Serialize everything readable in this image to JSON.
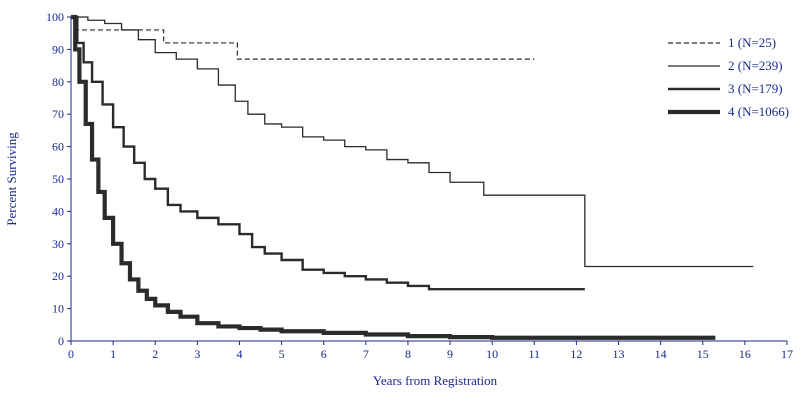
{
  "chart_data": {
    "type": "line",
    "title": "",
    "xlabel": "Years from Registration",
    "ylabel": "Percent Surviving",
    "xlim": [
      0,
      17
    ],
    "ylim": [
      0,
      100
    ],
    "x_ticks": [
      0,
      1,
      2,
      3,
      4,
      5,
      6,
      7,
      8,
      9,
      10,
      11,
      12,
      13,
      14,
      15,
      16,
      17
    ],
    "y_ticks": [
      0,
      10,
      20,
      30,
      40,
      50,
      60,
      70,
      80,
      90,
      100
    ],
    "grid": false,
    "legend_position": "top-right",
    "step": true,
    "series": [
      {
        "name": "1 (N=25)",
        "style": "dashed",
        "x": [
          0,
          0.15,
          2.2,
          3.95,
          11.0
        ],
        "y": [
          100,
          96,
          92,
          87,
          87
        ]
      },
      {
        "name": "2 (N=239)",
        "style": "thin",
        "x": [
          0,
          0.4,
          0.8,
          1.2,
          1.6,
          2.0,
          2.5,
          3.0,
          3.5,
          3.9,
          4.2,
          4.6,
          5.0,
          5.5,
          6.0,
          6.5,
          7.0,
          7.5,
          8.0,
          8.5,
          9.0,
          9.4,
          9.8,
          10.5,
          11.5,
          12.2,
          16.2
        ],
        "y": [
          100,
          99,
          98,
          96,
          93,
          89,
          87,
          84,
          79,
          74,
          70,
          67,
          66,
          63,
          62,
          60,
          59,
          56,
          55,
          52,
          49,
          49,
          45,
          45,
          45,
          23,
          23
        ]
      },
      {
        "name": "3 (N=179)",
        "style": "medium",
        "x": [
          0,
          0.15,
          0.3,
          0.5,
          0.75,
          1.0,
          1.25,
          1.5,
          1.75,
          2.0,
          2.3,
          2.6,
          3.0,
          3.5,
          4.0,
          4.3,
          4.6,
          5.0,
          5.5,
          6.0,
          6.5,
          7.0,
          7.5,
          8.0,
          8.5,
          9.0,
          10.0,
          11.0,
          12.2
        ],
        "y": [
          100,
          92,
          86,
          80,
          73,
          66,
          60,
          55,
          50,
          47,
          42,
          40,
          38,
          36,
          33,
          29,
          27,
          25,
          22,
          21,
          20,
          19,
          18,
          17,
          16,
          16,
          16,
          16,
          16
        ]
      },
      {
        "name": "4 (N=1066)",
        "style": "thick",
        "x": [
          0,
          0.1,
          0.2,
          0.35,
          0.5,
          0.65,
          0.8,
          1.0,
          1.2,
          1.4,
          1.6,
          1.8,
          2.0,
          2.3,
          2.6,
          3.0,
          3.5,
          4.0,
          4.5,
          5.0,
          6.0,
          7.0,
          8.0,
          9.0,
          10.0,
          11.0,
          12.0,
          13.0,
          14.0,
          15.3
        ],
        "y": [
          100,
          90,
          80,
          67,
          56,
          46,
          38,
          30,
          24,
          19,
          15.5,
          13,
          11,
          9,
          7.5,
          5.5,
          4.5,
          4,
          3.5,
          3,
          2.5,
          2,
          1.5,
          1.2,
          1,
          1,
          1,
          1,
          1,
          1
        ]
      }
    ]
  }
}
